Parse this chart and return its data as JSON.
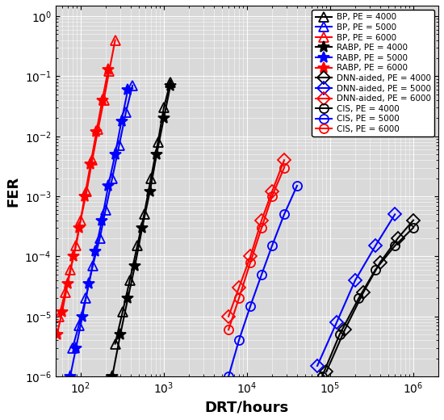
{
  "xlabel": "DRT/hours",
  "ylabel": "FER",
  "xlim": [
    50,
    2000000.0
  ],
  "ylim": [
    1e-06,
    1.5
  ],
  "bg_color": "#d9d9d9",
  "series": [
    {
      "label": "BP, PE = 4000",
      "color": "black",
      "marker": "^",
      "markersize": 8,
      "linewidth": 1.5,
      "mfc": "none",
      "x": [
        260,
        320,
        390,
        480,
        580,
        700,
        850,
        1000,
        1200
      ],
      "y": [
        3.5e-06,
        1.2e-05,
        4e-05,
        0.00015,
        0.0005,
        0.002,
        0.008,
        0.03,
        0.08
      ]
    },
    {
      "label": "BP, PE = 5000",
      "color": "blue",
      "marker": "^",
      "markersize": 8,
      "linewidth": 1.5,
      "mfc": "none",
      "x": [
        80,
        95,
        115,
        140,
        170,
        200,
        240,
        290,
        350,
        420
      ],
      "y": [
        3e-06,
        7e-06,
        2e-05,
        7e-05,
        0.0002,
        0.0006,
        0.002,
        0.007,
        0.025,
        0.07
      ]
    },
    {
      "label": "BP, PE = 6000",
      "color": "red",
      "marker": "^",
      "markersize": 8,
      "linewidth": 1.5,
      "mfc": "none",
      "x": [
        55,
        65,
        75,
        88,
        100,
        118,
        138,
        162,
        190,
        220,
        260
      ],
      "y": [
        1e-05,
        2.5e-05,
        6e-05,
        0.00015,
        0.0004,
        0.0012,
        0.004,
        0.013,
        0.04,
        0.12,
        0.4
      ]
    },
    {
      "label": "RABP, PE = 4000",
      "color": "black",
      "marker": "*",
      "markersize": 10,
      "linewidth": 1.5,
      "mfc": "black",
      "x": [
        240,
        300,
        370,
        450,
        550,
        680,
        820,
        1000,
        1200
      ],
      "y": [
        1e-06,
        5e-06,
        2e-05,
        7e-05,
        0.0003,
        0.0012,
        0.005,
        0.02,
        0.07
      ]
    },
    {
      "label": "RABP, PE = 5000",
      "color": "blue",
      "marker": "*",
      "markersize": 10,
      "linewidth": 1.5,
      "mfc": "blue",
      "x": [
        75,
        88,
        105,
        125,
        150,
        180,
        215,
        260,
        310,
        370
      ],
      "y": [
        1e-06,
        3e-06,
        1e-05,
        3.5e-05,
        0.00012,
        0.0004,
        0.0015,
        0.005,
        0.018,
        0.06
      ]
    },
    {
      "label": "RABP, PE = 6000",
      "color": "red",
      "marker": "*",
      "markersize": 10,
      "linewidth": 1.5,
      "mfc": "red",
      "x": [
        52,
        60,
        70,
        82,
        96,
        112,
        132,
        155,
        182,
        215
      ],
      "y": [
        5e-06,
        1.2e-05,
        3.5e-05,
        0.0001,
        0.0003,
        0.001,
        0.0035,
        0.012,
        0.04,
        0.13
      ]
    },
    {
      "label": "DNN-aided, PE = 4000",
      "color": "black",
      "marker": "D",
      "markersize": 8,
      "linewidth": 1.5,
      "mfc": "none",
      "x": [
        90000.0,
        150000.0,
        250000.0,
        400000.0,
        650000.0,
        1000000.0
      ],
      "y": [
        1.2e-06,
        6e-06,
        2.5e-05,
        8e-05,
        0.0002,
        0.0004
      ]
    },
    {
      "label": "DNN-aided, PE = 5000",
      "color": "blue",
      "marker": "D",
      "markersize": 8,
      "linewidth": 1.5,
      "mfc": "none",
      "x": [
        70000.0,
        120000.0,
        200000.0,
        350000.0,
        600000.0
      ],
      "y": [
        1.5e-06,
        8e-06,
        4e-05,
        0.00015,
        0.0005
      ]
    },
    {
      "label": "DNN-aided, PE = 6000",
      "color": "red",
      "marker": "D",
      "markersize": 8,
      "linewidth": 1.5,
      "mfc": "none",
      "x": [
        6000.0,
        8000.0,
        11000.0,
        15000.0,
        20000.0,
        28000.0
      ],
      "y": [
        1e-05,
        3e-05,
        0.0001,
        0.0004,
        0.0012,
        0.004
      ]
    },
    {
      "label": "CIS, PE = 4000",
      "color": "black",
      "marker": "o",
      "markersize": 8,
      "linewidth": 1.5,
      "mfc": "none",
      "x": [
        80000.0,
        130000.0,
        220000.0,
        350000.0,
        600000.0,
        1000000.0
      ],
      "y": [
        1e-06,
        5e-06,
        2e-05,
        6e-05,
        0.00015,
        0.0003
      ]
    },
    {
      "label": "CIS, PE = 5000",
      "color": "blue",
      "marker": "o",
      "markersize": 8,
      "linewidth": 1.5,
      "mfc": "none",
      "x": [
        6000.0,
        8000.0,
        11000.0,
        15000.0,
        20000.0,
        28000.0,
        40000.0
      ],
      "y": [
        1e-06,
        4e-06,
        1.5e-05,
        5e-05,
        0.00015,
        0.0005,
        0.0015
      ]
    },
    {
      "label": "CIS, PE = 6000",
      "color": "red",
      "marker": "o",
      "markersize": 8,
      "linewidth": 1.5,
      "mfc": "none",
      "x": [
        6000.0,
        8000.0,
        11000.0,
        15000.0,
        20000.0,
        28000.0
      ],
      "y": [
        6e-06,
        2e-05,
        8e-05,
        0.0003,
        0.001,
        0.003
      ]
    }
  ]
}
